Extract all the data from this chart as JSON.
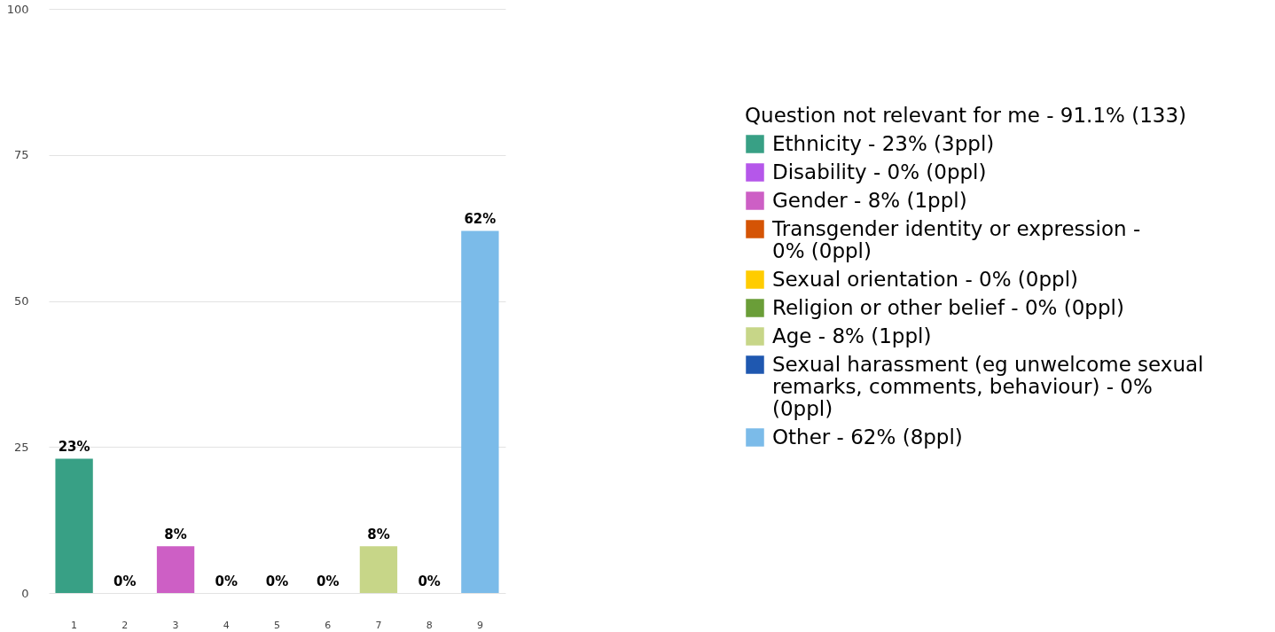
{
  "chart_data": {
    "type": "bar",
    "categories": [
      "1",
      "2",
      "3",
      "4",
      "5",
      "6",
      "7",
      "8",
      "9"
    ],
    "legend_title": "Question not relevant for me - 91.1% (133)",
    "series": [
      {
        "name": "Ethnicity - 23% (3ppl)",
        "color": "#38a085",
        "values": [
          23,
          null,
          null,
          null,
          null,
          null,
          null,
          null,
          null
        ],
        "value_labels": [
          "23%",
          null,
          null,
          null,
          null,
          null,
          null,
          null,
          null
        ]
      },
      {
        "name": "Disability - 0% (0ppl)",
        "color": "#b557ea",
        "values": [
          null,
          0,
          null,
          null,
          null,
          null,
          null,
          null,
          null
        ],
        "value_labels": [
          null,
          "0%",
          null,
          null,
          null,
          null,
          null,
          null,
          null
        ]
      },
      {
        "name": "Gender - 8% (1ppl)",
        "color": "#cd5fc5",
        "values": [
          null,
          null,
          8,
          null,
          null,
          null,
          null,
          null,
          null
        ],
        "value_labels": [
          null,
          null,
          "8%",
          null,
          null,
          null,
          null,
          null,
          null
        ]
      },
      {
        "name": "Transgender identity or expression - 0% (0ppl)",
        "color": "#d55405",
        "values": [
          null,
          null,
          null,
          0,
          null,
          null,
          null,
          null,
          null
        ],
        "value_labels": [
          null,
          null,
          null,
          "0%",
          null,
          null,
          null,
          null,
          null
        ]
      },
      {
        "name": "Sexual orientation - 0% (0ppl)",
        "color": "#ffcc00",
        "values": [
          null,
          null,
          null,
          null,
          0,
          null,
          null,
          null,
          null
        ],
        "value_labels": [
          null,
          null,
          null,
          null,
          "0%",
          null,
          null,
          null,
          null
        ]
      },
      {
        "name": "Religion or other belief - 0% (0ppl)",
        "color": "#6a9e38",
        "values": [
          null,
          null,
          null,
          null,
          null,
          0,
          null,
          null,
          null
        ],
        "value_labels": [
          null,
          null,
          null,
          null,
          null,
          "0%",
          null,
          null,
          null
        ]
      },
      {
        "name": "Age - 8% (1ppl)",
        "color": "#c7d688",
        "values": [
          null,
          null,
          null,
          null,
          null,
          null,
          8,
          null,
          null
        ],
        "value_labels": [
          null,
          null,
          null,
          null,
          null,
          null,
          "8%",
          null,
          null
        ]
      },
      {
        "name": "Sexual harassment (eg unwelcome sexual remarks, comments, behaviour) - 0% (0ppl)",
        "color": "#1f58b0",
        "values": [
          null,
          null,
          null,
          null,
          null,
          null,
          null,
          0,
          null
        ],
        "value_labels": [
          null,
          null,
          null,
          null,
          null,
          null,
          null,
          "0%",
          null
        ]
      },
      {
        "name": "Other - 62% (8ppl)",
        "color": "#7bbbe9",
        "values": [
          null,
          null,
          null,
          null,
          null,
          null,
          null,
          null,
          62
        ],
        "value_labels": [
          null,
          null,
          null,
          null,
          null,
          null,
          null,
          null,
          "62%"
        ]
      }
    ],
    "ylim": [
      0,
      100
    ],
    "yticks": [
      0,
      25,
      50,
      75,
      100
    ],
    "grid": "y",
    "legend": "right"
  }
}
